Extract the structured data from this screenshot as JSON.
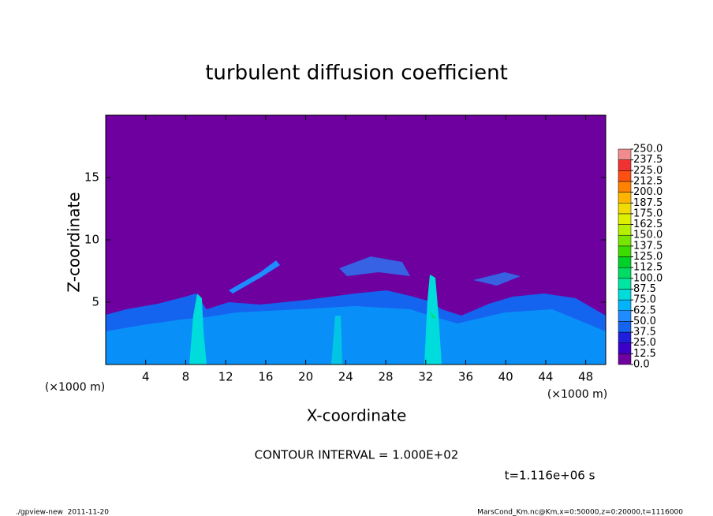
{
  "chart_data": {
    "type": "contour",
    "title": "turbulent diffusion coefficient",
    "xlabel": "X-coordinate",
    "ylabel": "Z-coordinate",
    "xunit": "(×1000 m)",
    "yunit": "(×1000 m)",
    "xlim": [
      0,
      50
    ],
    "xticks": [
      4,
      8,
      12,
      16,
      20,
      24,
      28,
      32,
      36,
      40,
      44,
      48
    ],
    "ylim": [
      0,
      20
    ],
    "yticks": [
      5,
      10,
      15
    ],
    "colorbar": {
      "levels": [
        {
          "value": 0,
          "label": "0.0"
        },
        {
          "value": 12.5,
          "label": "12.5"
        },
        {
          "value": 25,
          "label": "25.0"
        },
        {
          "value": 37.5,
          "label": "37.5"
        },
        {
          "value": 50,
          "label": "50.0"
        },
        {
          "value": 62.5,
          "label": "62.5"
        },
        {
          "value": 75,
          "label": "75.0"
        },
        {
          "value": 87.5,
          "label": "87.5"
        },
        {
          "value": 100,
          "label": "100.0"
        },
        {
          "value": 112.5,
          "label": "112.5"
        },
        {
          "value": 125,
          "label": "125.0"
        },
        {
          "value": 137.5,
          "label": "137.5"
        },
        {
          "value": 150,
          "label": "150.0"
        },
        {
          "value": 162.5,
          "label": "162.5"
        },
        {
          "value": 175,
          "label": "175.0"
        },
        {
          "value": 187.5,
          "label": "187.5"
        },
        {
          "value": 200,
          "label": "200.0"
        },
        {
          "value": 212.5,
          "label": "212.5"
        },
        {
          "value": 225,
          "label": "225.0"
        },
        {
          "value": 237.5,
          "label": "237.5"
        },
        {
          "value": 250,
          "label": "250.0"
        }
      ],
      "colors": [
        "#6e00a0",
        "#3c00c8",
        "#1e1edc",
        "#1464f0",
        "#1e8cff",
        "#00b4ff",
        "#00dcdc",
        "#00e6a0",
        "#00dc64",
        "#00d228",
        "#3cdc00",
        "#78e600",
        "#b4f000",
        "#dcf000",
        "#f0dc00",
        "#ffb400",
        "#ff8200",
        "#ff5014",
        "#f03232",
        "#f08c8c"
      ]
    },
    "contour_note": "CONTOUR INTERVAL = 1.000E+02",
    "time_note": "t=1.116e+06 s",
    "footer_left": "./gpview-new  2011-11-20",
    "footer_right": "MarsCond_Km.nc@Km,x=0:50000,z=0:20000,t=1116000"
  }
}
